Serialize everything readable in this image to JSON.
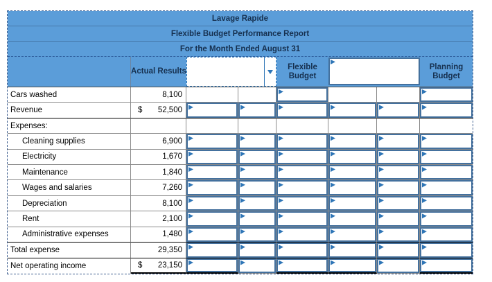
{
  "report": {
    "titles": [
      "Lavage Rapide",
      "Flexible Budget Performance Report",
      "For the Month Ended August 31"
    ],
    "headers": {
      "actual": "Actual Results",
      "flexible": "Flexible Budget",
      "planning": "Planning Budget"
    },
    "dropdown": {
      "value": ""
    },
    "header_input": {
      "value": ""
    },
    "rows": [
      {
        "label": "Cars washed",
        "indent": false,
        "dollar": "",
        "actual": "8,100",
        "boxes": [
          false,
          false,
          true,
          false,
          false,
          true
        ],
        "rule": "none"
      },
      {
        "label": "Revenue",
        "indent": false,
        "dollar": "$",
        "actual": "52,500",
        "boxes": [
          true,
          true,
          true,
          true,
          true,
          true
        ],
        "rule": "single"
      },
      {
        "label": "Expenses:",
        "indent": false,
        "dollar": "",
        "actual": "",
        "boxes": [
          false,
          false,
          false,
          false,
          false,
          false
        ],
        "rule": "none"
      },
      {
        "label": "Cleaning supplies",
        "indent": true,
        "dollar": "",
        "actual": "6,900",
        "boxes": [
          true,
          true,
          true,
          true,
          true,
          true
        ],
        "rule": "none"
      },
      {
        "label": "Electricity",
        "indent": true,
        "dollar": "",
        "actual": "1,670",
        "boxes": [
          true,
          true,
          true,
          true,
          true,
          true
        ],
        "rule": "none"
      },
      {
        "label": "Maintenance",
        "indent": true,
        "dollar": "",
        "actual": "1,840",
        "boxes": [
          true,
          true,
          true,
          true,
          true,
          true
        ],
        "rule": "none"
      },
      {
        "label": "Wages and salaries",
        "indent": true,
        "dollar": "",
        "actual": "7,260",
        "boxes": [
          true,
          true,
          true,
          true,
          true,
          true
        ],
        "rule": "none"
      },
      {
        "label": "Depreciation",
        "indent": true,
        "dollar": "",
        "actual": "8,100",
        "boxes": [
          true,
          true,
          true,
          true,
          true,
          true
        ],
        "rule": "none"
      },
      {
        "label": "Rent",
        "indent": true,
        "dollar": "",
        "actual": "2,100",
        "boxes": [
          true,
          true,
          true,
          true,
          true,
          true
        ],
        "rule": "none"
      },
      {
        "label": "Administrative expenses",
        "indent": true,
        "dollar": "",
        "actual": "1,480",
        "boxes": [
          true,
          true,
          true,
          true,
          true,
          true
        ],
        "rule": "single"
      },
      {
        "label": "Total expense",
        "indent": false,
        "dollar": "",
        "actual": "29,350",
        "boxes": [
          true,
          true,
          true,
          true,
          true,
          true
        ],
        "rule": "single"
      },
      {
        "label": "Net operating income",
        "indent": false,
        "dollar": "$",
        "actual": "23,150",
        "boxes": [
          true,
          true,
          true,
          true,
          true,
          true
        ],
        "rule": "double"
      }
    ],
    "colors": {
      "header_blue": "#5b9dd9",
      "answer_box_border": "#44719e",
      "flag_blue": "#2e75b6",
      "grid_gray": "#8a8a8a",
      "rule_black": "#000000"
    }
  }
}
